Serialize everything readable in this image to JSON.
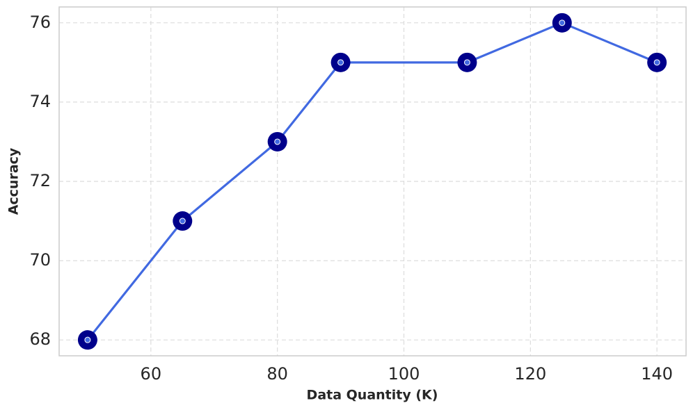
{
  "chart_data": {
    "type": "line",
    "x_label": "Data Quantity (K)",
    "y_label": "Accuracy",
    "x": [
      50,
      65,
      80,
      90,
      110,
      125,
      140
    ],
    "series": [
      {
        "name": "Accuracy",
        "color": "#4169e1",
        "marker_color": "#00008b",
        "values": [
          68,
          71,
          73,
          75,
          75,
          76,
          75
        ]
      }
    ],
    "xlim": [
      45.5,
      144.6
    ],
    "ylim": [
      67.6,
      76.4
    ],
    "xticks": [
      60,
      80,
      100,
      120,
      140
    ],
    "yticks": [
      68,
      70,
      72,
      74,
      76
    ],
    "grid": true
  }
}
